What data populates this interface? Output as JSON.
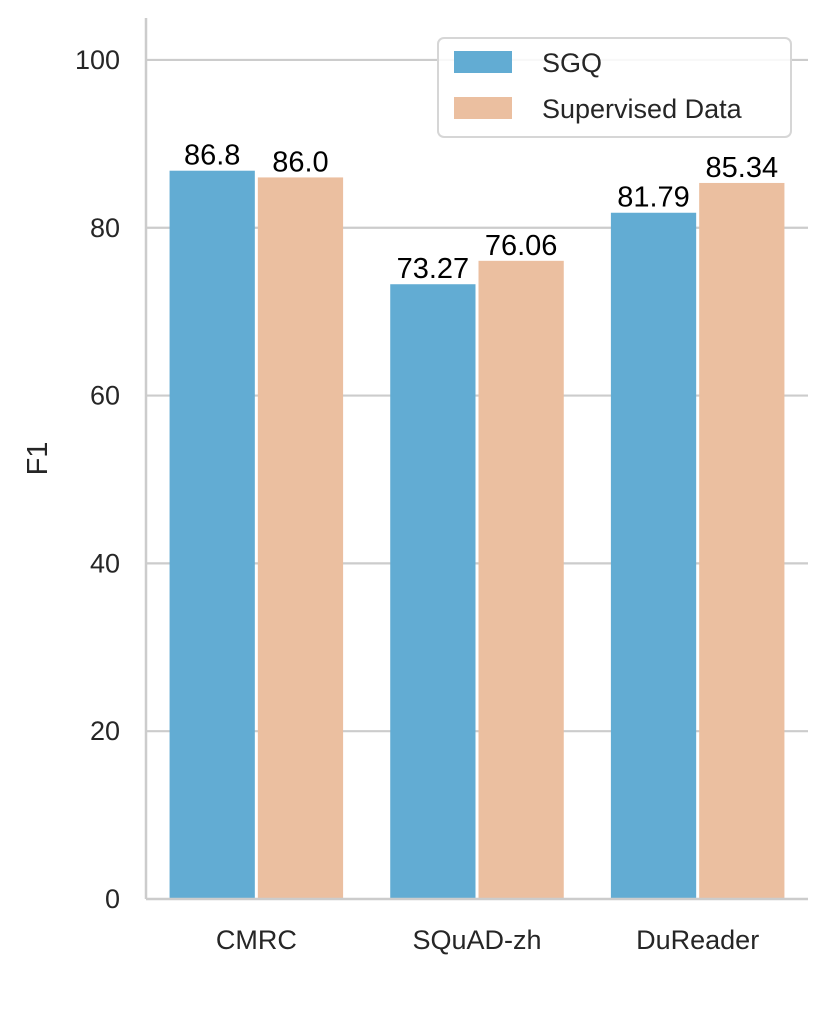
{
  "chart_data": {
    "type": "bar",
    "title": "",
    "xlabel": "",
    "ylabel": "F1",
    "categories": [
      "CMRC",
      "SQuAD-zh",
      "DuReader"
    ],
    "series": [
      {
        "name": "SGQ",
        "color": "#62acd3",
        "values": [
          86.8,
          73.27,
          81.79
        ],
        "labels": [
          "86.8",
          "73.27",
          "81.79"
        ]
      },
      {
        "name": "Supervised Data",
        "color": "#ebbfa0",
        "values": [
          86.0,
          76.06,
          85.34
        ],
        "labels": [
          "86.0",
          "76.06",
          "85.34"
        ]
      }
    ],
    "ylim": [
      0,
      105
    ],
    "yticks": [
      0,
      20,
      40,
      60,
      80,
      100
    ],
    "ytick_labels": [
      "0",
      "20",
      "40",
      "60",
      "80",
      "100"
    ],
    "grid": "horizontal",
    "legend": "top-right"
  }
}
